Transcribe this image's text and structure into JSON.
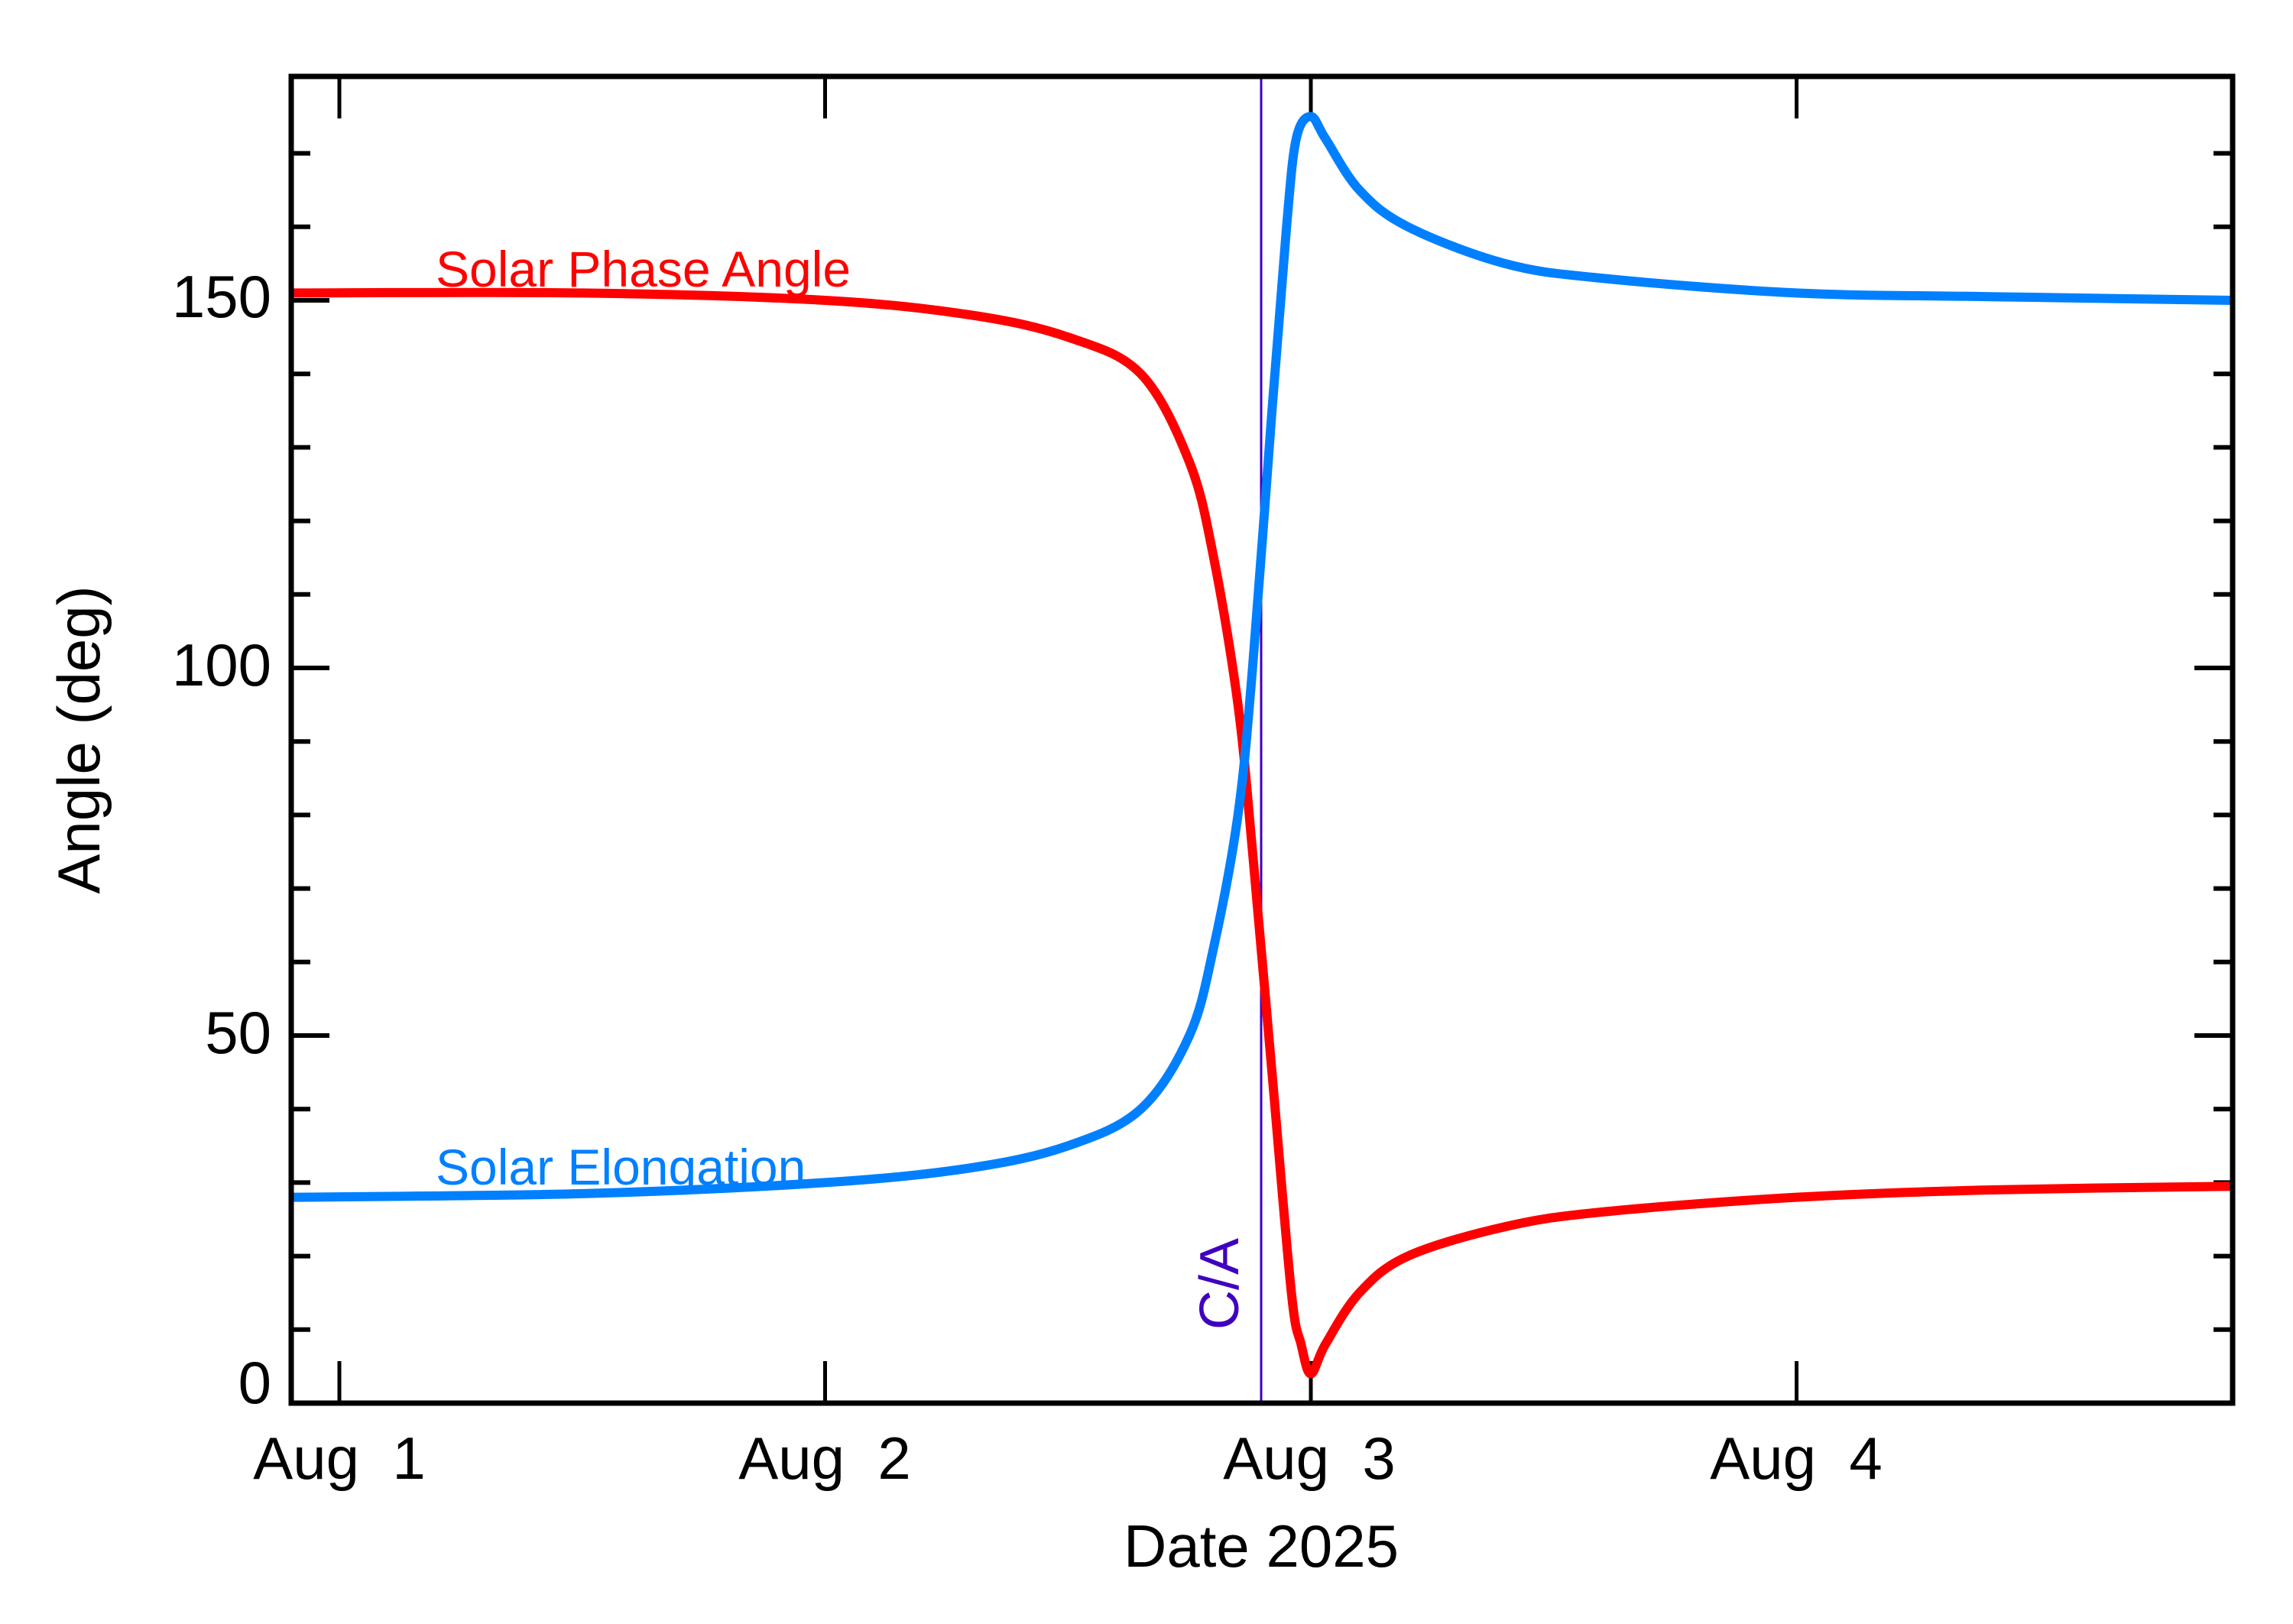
{
  "chart_data": {
    "type": "line",
    "title": "",
    "xlabel": "Date 2025",
    "ylabel": "Angle (deg)",
    "xlim_days_from_aug1": [
      -0.1,
      3.9
    ],
    "ylim": [
      0,
      180
    ],
    "x_tick_labels": [
      "Aug  1",
      "Aug  2",
      "Aug  3",
      "Aug  4"
    ],
    "y_tick_labels": [
      "0",
      "50",
      "100",
      "150"
    ],
    "y_minor_tick_step": 10,
    "grid": false,
    "annotations": [
      {
        "text": "C/A",
        "x_days_from_aug1": 1.9,
        "color": "#4000C0",
        "type": "vertical-line"
      }
    ],
    "series": [
      {
        "name": "Solar Phase Angle",
        "color": "#FF0000",
        "x_days_from_aug1": [
          -0.1,
          0.5,
          1.0,
          1.3,
          1.5,
          1.65,
          1.75,
          1.8,
          1.85,
          1.88,
          1.92,
          1.96,
          1.98,
          2.0,
          2.03,
          2.1,
          2.2,
          2.4,
          2.6,
          3.0,
          3.4,
          3.9
        ],
        "values": [
          151,
          151,
          150,
          148,
          145,
          140,
          128,
          115,
          95,
          75,
          45,
          15,
          8,
          4,
          8,
          15,
          20,
          24,
          26,
          28,
          29,
          29.5
        ]
      },
      {
        "name": "Solar Elongation",
        "color": "#0080FF",
        "x_days_from_aug1": [
          -0.1,
          0.5,
          1.0,
          1.3,
          1.5,
          1.65,
          1.75,
          1.8,
          1.85,
          1.88,
          1.92,
          1.95,
          1.97,
          2.0,
          2.03,
          2.1,
          2.2,
          2.4,
          2.6,
          3.0,
          3.4,
          3.9
        ],
        "values": [
          28,
          28.5,
          30,
          32,
          35,
          40,
          50,
          62,
          80,
          100,
          135,
          160,
          172,
          175,
          172,
          165,
          160,
          155,
          153,
          151,
          150.5,
          150
        ]
      }
    ]
  },
  "labels": {
    "series_red": "Solar Phase Angle",
    "series_blue": "Solar Elongation",
    "ca": "C/A",
    "xlabel": "Date 2025",
    "ylabel": "Angle (deg)",
    "x_ticks": [
      "Aug  1",
      "Aug  2",
      "Aug  3",
      "Aug  4"
    ],
    "y_ticks": [
      "0",
      "50",
      "100",
      "150"
    ]
  }
}
